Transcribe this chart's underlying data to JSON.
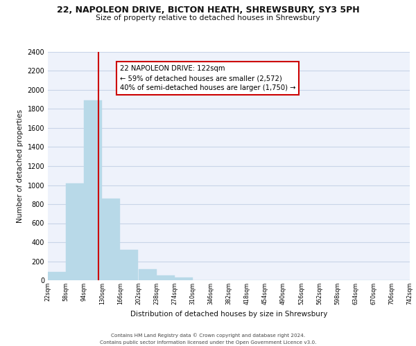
{
  "title": "22, NAPOLEON DRIVE, BICTON HEATH, SHREWSBURY, SY3 5PH",
  "subtitle": "Size of property relative to detached houses in Shrewsbury",
  "xlabel": "Distribution of detached houses by size in Shrewsbury",
  "ylabel": "Number of detached properties",
  "bar_edges": [
    22,
    58,
    94,
    130,
    166,
    202,
    238,
    274,
    310,
    346,
    382,
    418,
    454,
    490,
    526,
    562,
    598,
    634,
    670,
    706,
    742
  ],
  "bar_heights": [
    90,
    1020,
    1890,
    860,
    320,
    115,
    50,
    30,
    0,
    0,
    0,
    0,
    0,
    0,
    0,
    0,
    0,
    0,
    0,
    0
  ],
  "bar_color": "#b8d9e8",
  "bar_edgecolor": "#b8d9e8",
  "property_line_x": 122,
  "property_line_color": "#cc0000",
  "annotation_line1": "22 NAPOLEON DRIVE: 122sqm",
  "annotation_line2": "← 59% of detached houses are smaller (2,572)",
  "annotation_line3": "40% of semi-detached houses are larger (1,750) →",
  "annotation_box_color": "#ffffff",
  "annotation_box_edgecolor": "#cc0000",
  "ylim": [
    0,
    2400
  ],
  "yticks": [
    0,
    200,
    400,
    600,
    800,
    1000,
    1200,
    1400,
    1600,
    1800,
    2000,
    2200,
    2400
  ],
  "tick_labels": [
    "22sqm",
    "58sqm",
    "94sqm",
    "130sqm",
    "166sqm",
    "202sqm",
    "238sqm",
    "274sqm",
    "310sqm",
    "346sqm",
    "382sqm",
    "418sqm",
    "454sqm",
    "490sqm",
    "526sqm",
    "562sqm",
    "598sqm",
    "634sqm",
    "670sqm",
    "706sqm",
    "742sqm"
  ],
  "grid_color": "#c8d4e8",
  "background_color": "#eef2fb",
  "footer_line1": "Contains HM Land Registry data © Crown copyright and database right 2024.",
  "footer_line2": "Contains public sector information licensed under the Open Government Licence v3.0."
}
